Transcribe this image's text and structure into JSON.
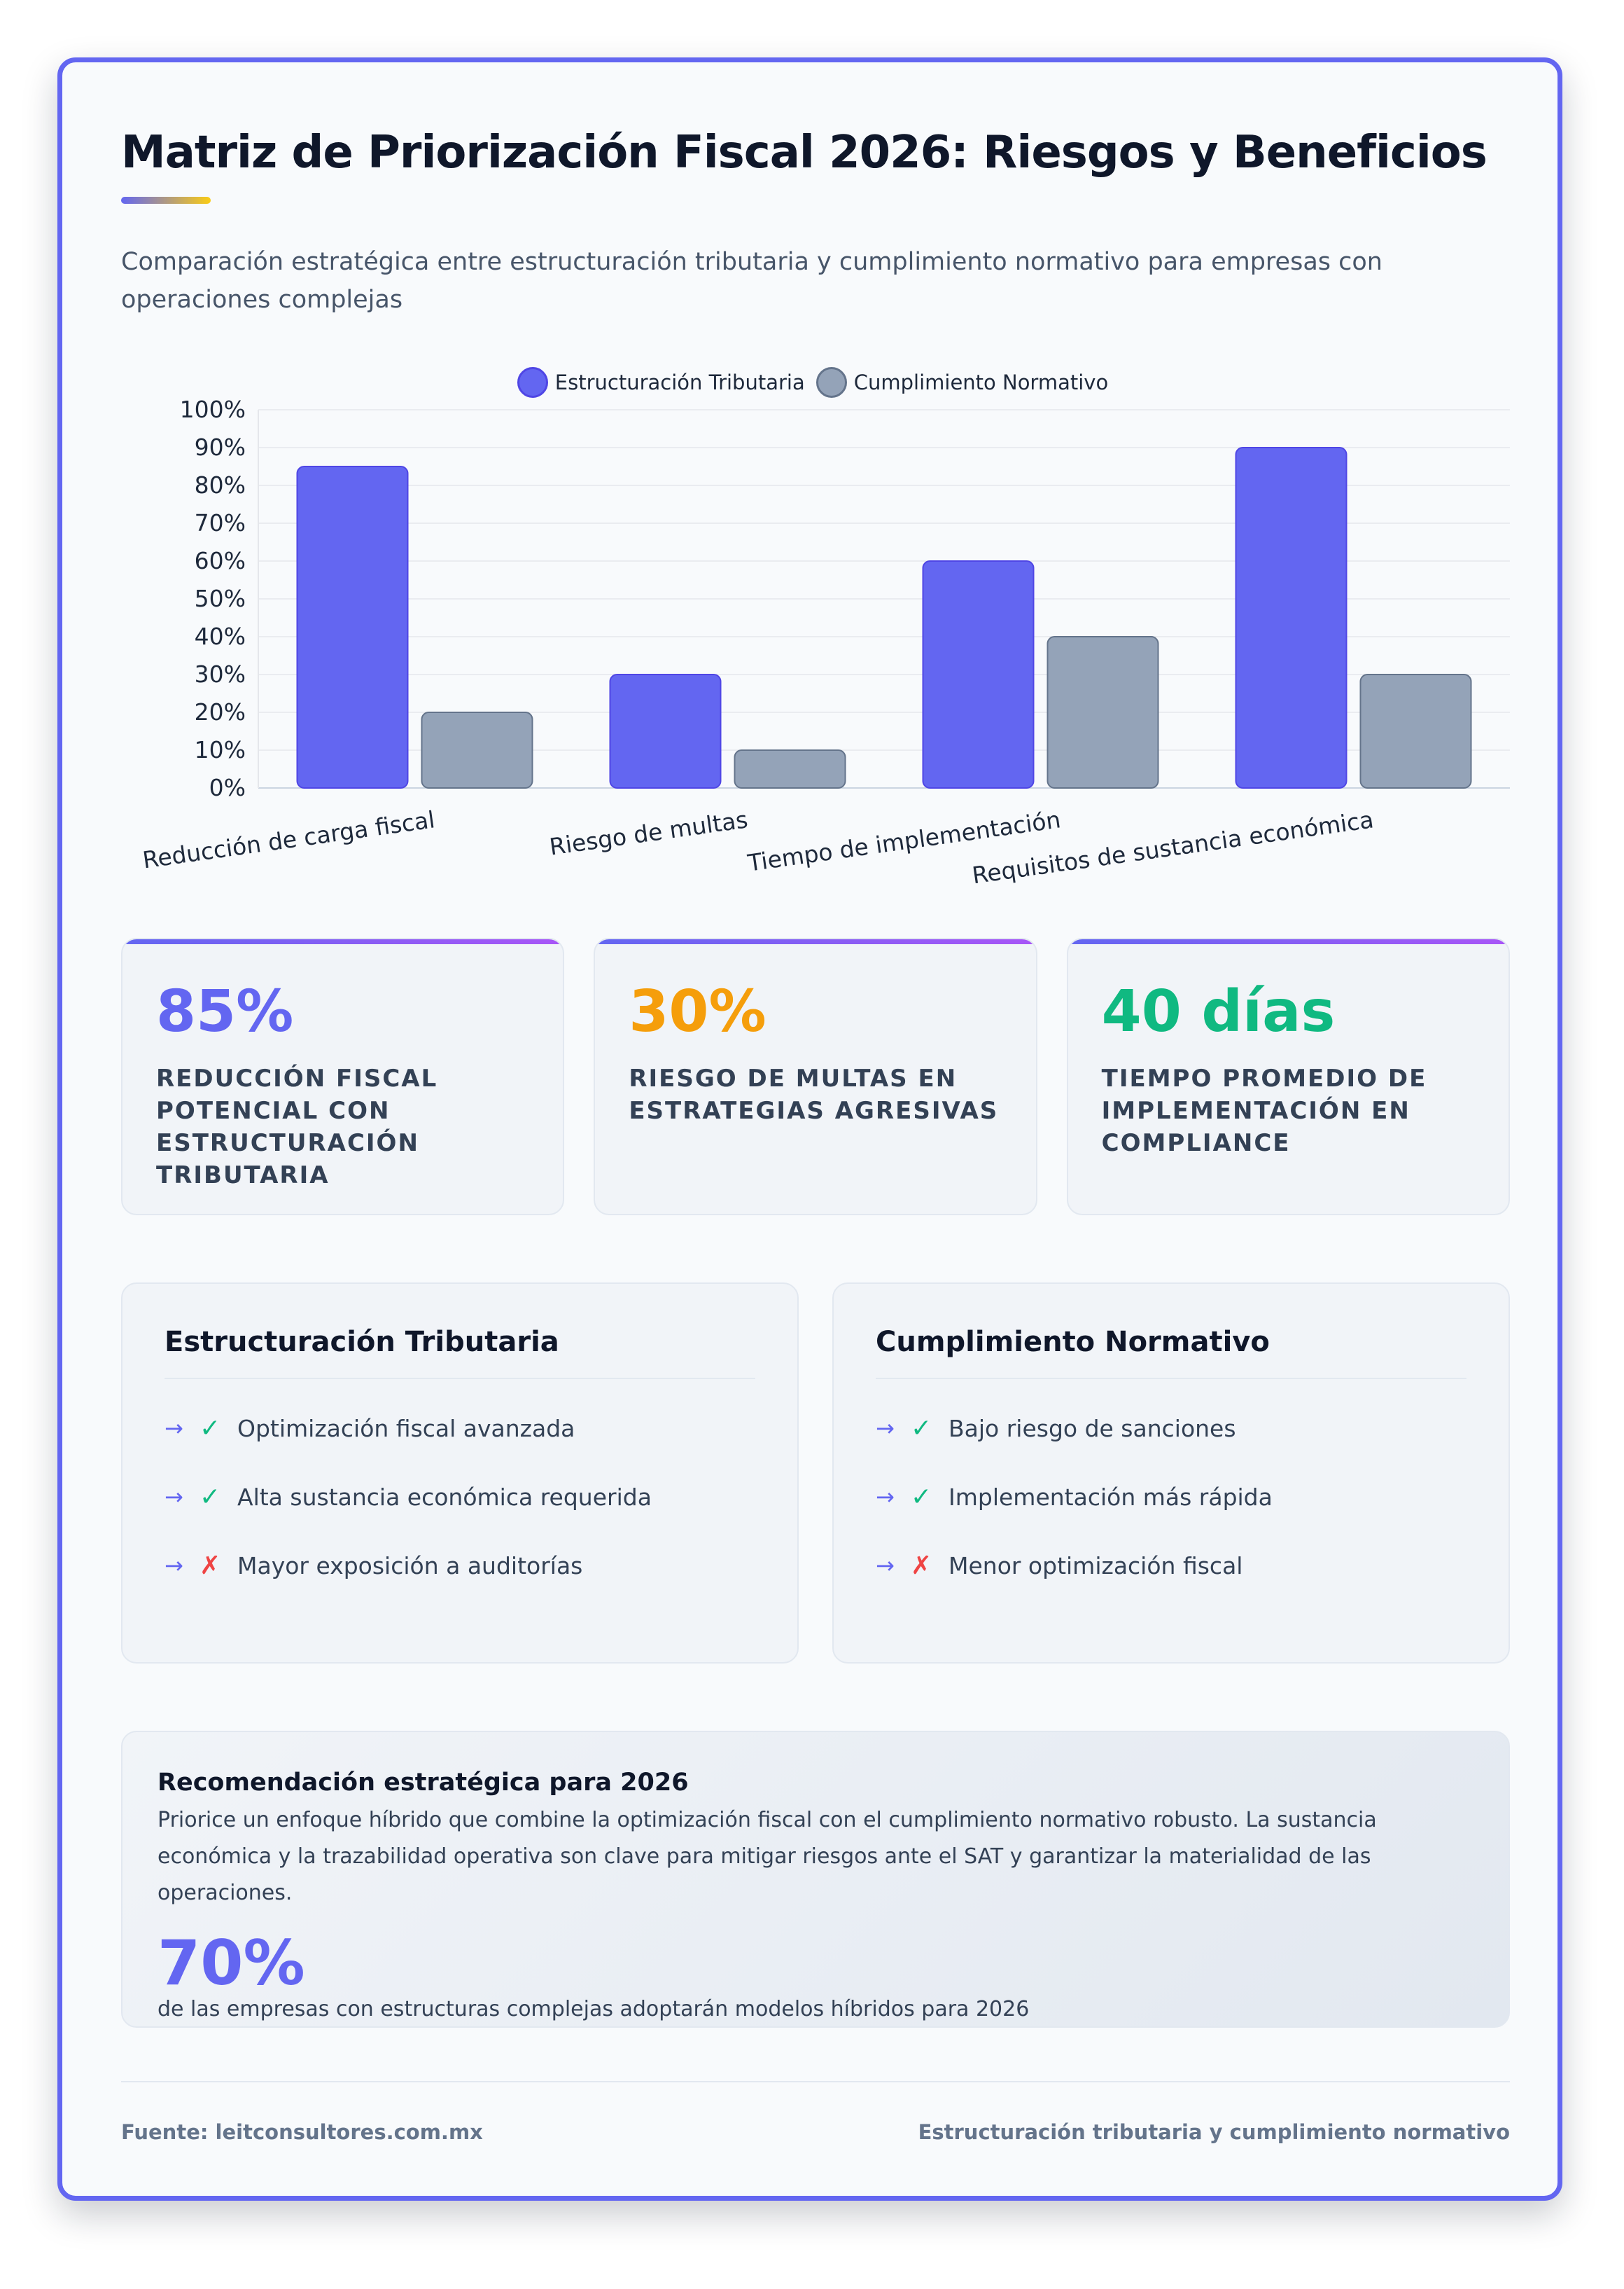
{
  "header": {
    "title": "Matriz de Priorización Fiscal 2026: Riesgos y Beneficios",
    "subtitle": "Comparación estratégica entre estructuración tributaria y cumplimiento normativo para empresas con operaciones complejas"
  },
  "chart_data": {
    "type": "bar",
    "categories": [
      "Reducción de carga fiscal",
      "Riesgo de multas",
      "Tiempo de implementación",
      "Requisitos de sustancia económica"
    ],
    "series": [
      {
        "name": "Estructuración Tributaria",
        "values": [
          85,
          30,
          60,
          90
        ],
        "color": "#6366f1",
        "border": "#4f46e5"
      },
      {
        "name": "Cumplimiento Normativo",
        "values": [
          20,
          10,
          40,
          30
        ],
        "color": "#94a3b8",
        "border": "#64748b"
      }
    ],
    "ylim": [
      0,
      100
    ],
    "yticks": [
      "0%",
      "10%",
      "20%",
      "30%",
      "40%",
      "50%",
      "60%",
      "70%",
      "80%",
      "90%",
      "100%"
    ],
    "grid": true,
    "legend": "top-center"
  },
  "stats": [
    {
      "value": "85%",
      "label": "Reducción fiscal potencial con estructuración tributaria",
      "color": "#6366f1"
    },
    {
      "value": "30%",
      "label": "Riesgo de multas en estrategias agresivas",
      "color": "#f59e0b"
    },
    {
      "value": "40 días",
      "label": "Tiempo promedio de implementación en compliance",
      "color": "#10b981"
    }
  ],
  "comparison": [
    {
      "title": "Estructuración Tributaria",
      "items": [
        {
          "text": "Optimización fiscal avanzada",
          "icon": "check-icon"
        },
        {
          "text": "Alta sustancia económica requerida",
          "icon": "check-icon"
        },
        {
          "text": "Mayor exposición a auditorías",
          "icon": "warning-icon"
        }
      ]
    },
    {
      "title": "Cumplimiento Normativo",
      "items": [
        {
          "text": "Bajo riesgo de sanciones",
          "icon": "check-icon"
        },
        {
          "text": "Implementación más rápida",
          "icon": "check-icon"
        },
        {
          "text": "Menor optimización fiscal",
          "icon": "warning-icon"
        }
      ]
    }
  ],
  "recommendation": {
    "title": "Recomendación estratégica para 2026",
    "text": "Priorice un enfoque híbrido que combine la optimización fiscal con el cumplimiento normativo robusto. La sustancia económica y la trazabilidad operativa son clave para mitigar riesgos ante el SAT y garantizar la materialidad de las operaciones.",
    "value": "70%",
    "caption": "de las empresas con estructuras complejas adoptarán modelos híbridos para 2026"
  },
  "footer": {
    "source": "Fuente: leitconsultores.com.mx",
    "note": "Estructuración tributaria y cumplimiento normativo"
  }
}
